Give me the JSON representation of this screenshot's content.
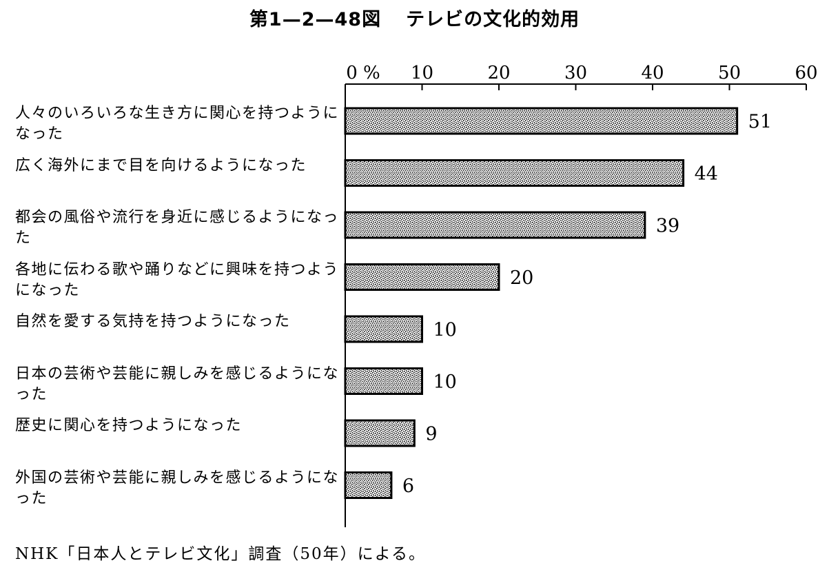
{
  "title": {
    "figure_no": "第1—2—48図",
    "text": "テレビの文化的効用"
  },
  "chart_data": {
    "type": "bar",
    "orientation": "horizontal",
    "categories": [
      "人々のいろいろな生き方に関心を持つようになった",
      "広く海外にまで目を向けるようになった",
      "都会の風俗や流行を身近に感じるようになった",
      "各地に伝わる歌や踊りなどに興味を持つようになった",
      "自然を愛する気持を持つようになった",
      "日本の芸術や芸能に親しみを感じるようになった",
      "歴史に関心を持つようになった",
      "外国の芸術や芸能に親しみを感じるようになった"
    ],
    "values": [
      51,
      44,
      39,
      20,
      10,
      10,
      9,
      6
    ],
    "value_labels": [
      "51",
      "44",
      "39",
      "20",
      "10",
      "10",
      "9",
      "6"
    ],
    "xlim": [
      0,
      60
    ],
    "ticks": [
      0,
      10,
      20,
      30,
      40,
      50,
      60
    ],
    "tick_labels": [
      "0 %",
      "10",
      "20",
      "30",
      "40",
      "50",
      "60"
    ],
    "axis_position": "top",
    "grid": false,
    "bar_fill": "stippled"
  },
  "source": "NHK「日本人とテレビ文化」調査（50年）による。"
}
